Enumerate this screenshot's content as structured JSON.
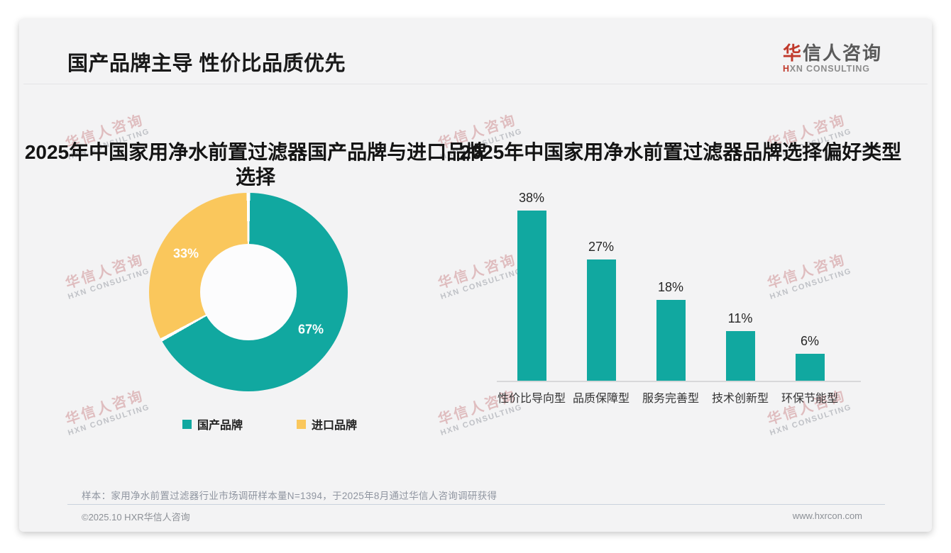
{
  "header": {
    "title": "国产品牌主导 性价比品质优先"
  },
  "logo": {
    "cn_first": "华",
    "cn_rest": "信人咨询",
    "en_first": "H",
    "en_rest": "XN CONSULTING"
  },
  "watermark": {
    "cn": "华信人咨询",
    "en": "HXN CONSULTING"
  },
  "colors": {
    "teal": "#11a8a0",
    "yellow": "#fac75c",
    "logo_red": "#c0392b"
  },
  "chart_data": [
    {
      "type": "pie",
      "donut": true,
      "title": "2025年中国家用净水前置过滤器国产品牌与进口品牌选择",
      "title_lines": [
        "2025年中国家用净水前置过滤器国产品牌与进口品牌",
        "选择"
      ],
      "labels": [
        "国产品牌",
        "进口品牌"
      ],
      "values": [
        67,
        33
      ],
      "value_labels": [
        "67%",
        "33%"
      ],
      "colors": [
        "#11a8a0",
        "#fac75c"
      ],
      "start_angle_deg": 0,
      "direction": "clockwise",
      "legend_position": "bottom"
    },
    {
      "type": "bar",
      "title": "2025年中国家用净水前置过滤器品牌选择偏好类型",
      "categories": [
        "性价比导向型",
        "品质保障型",
        "服务完善型",
        "技术创新型",
        "环保节能型"
      ],
      "values": [
        38,
        27,
        18,
        11,
        6
      ],
      "value_labels": [
        "38%",
        "27%",
        "18%",
        "11%",
        "6%"
      ],
      "bar_color": "#11a8a0",
      "xlabel": "",
      "ylabel": "",
      "ylim": [
        0,
        40
      ],
      "grid": false,
      "legend_position": "none"
    }
  ],
  "footnote": "样本：家用净水前置过滤器行业市场调研样本量N=1394，于2025年8月通过华信人咨询调研获得",
  "footer": {
    "left": "©2025.10 HXR华信人咨询",
    "right": "www.hxrcon.com"
  }
}
